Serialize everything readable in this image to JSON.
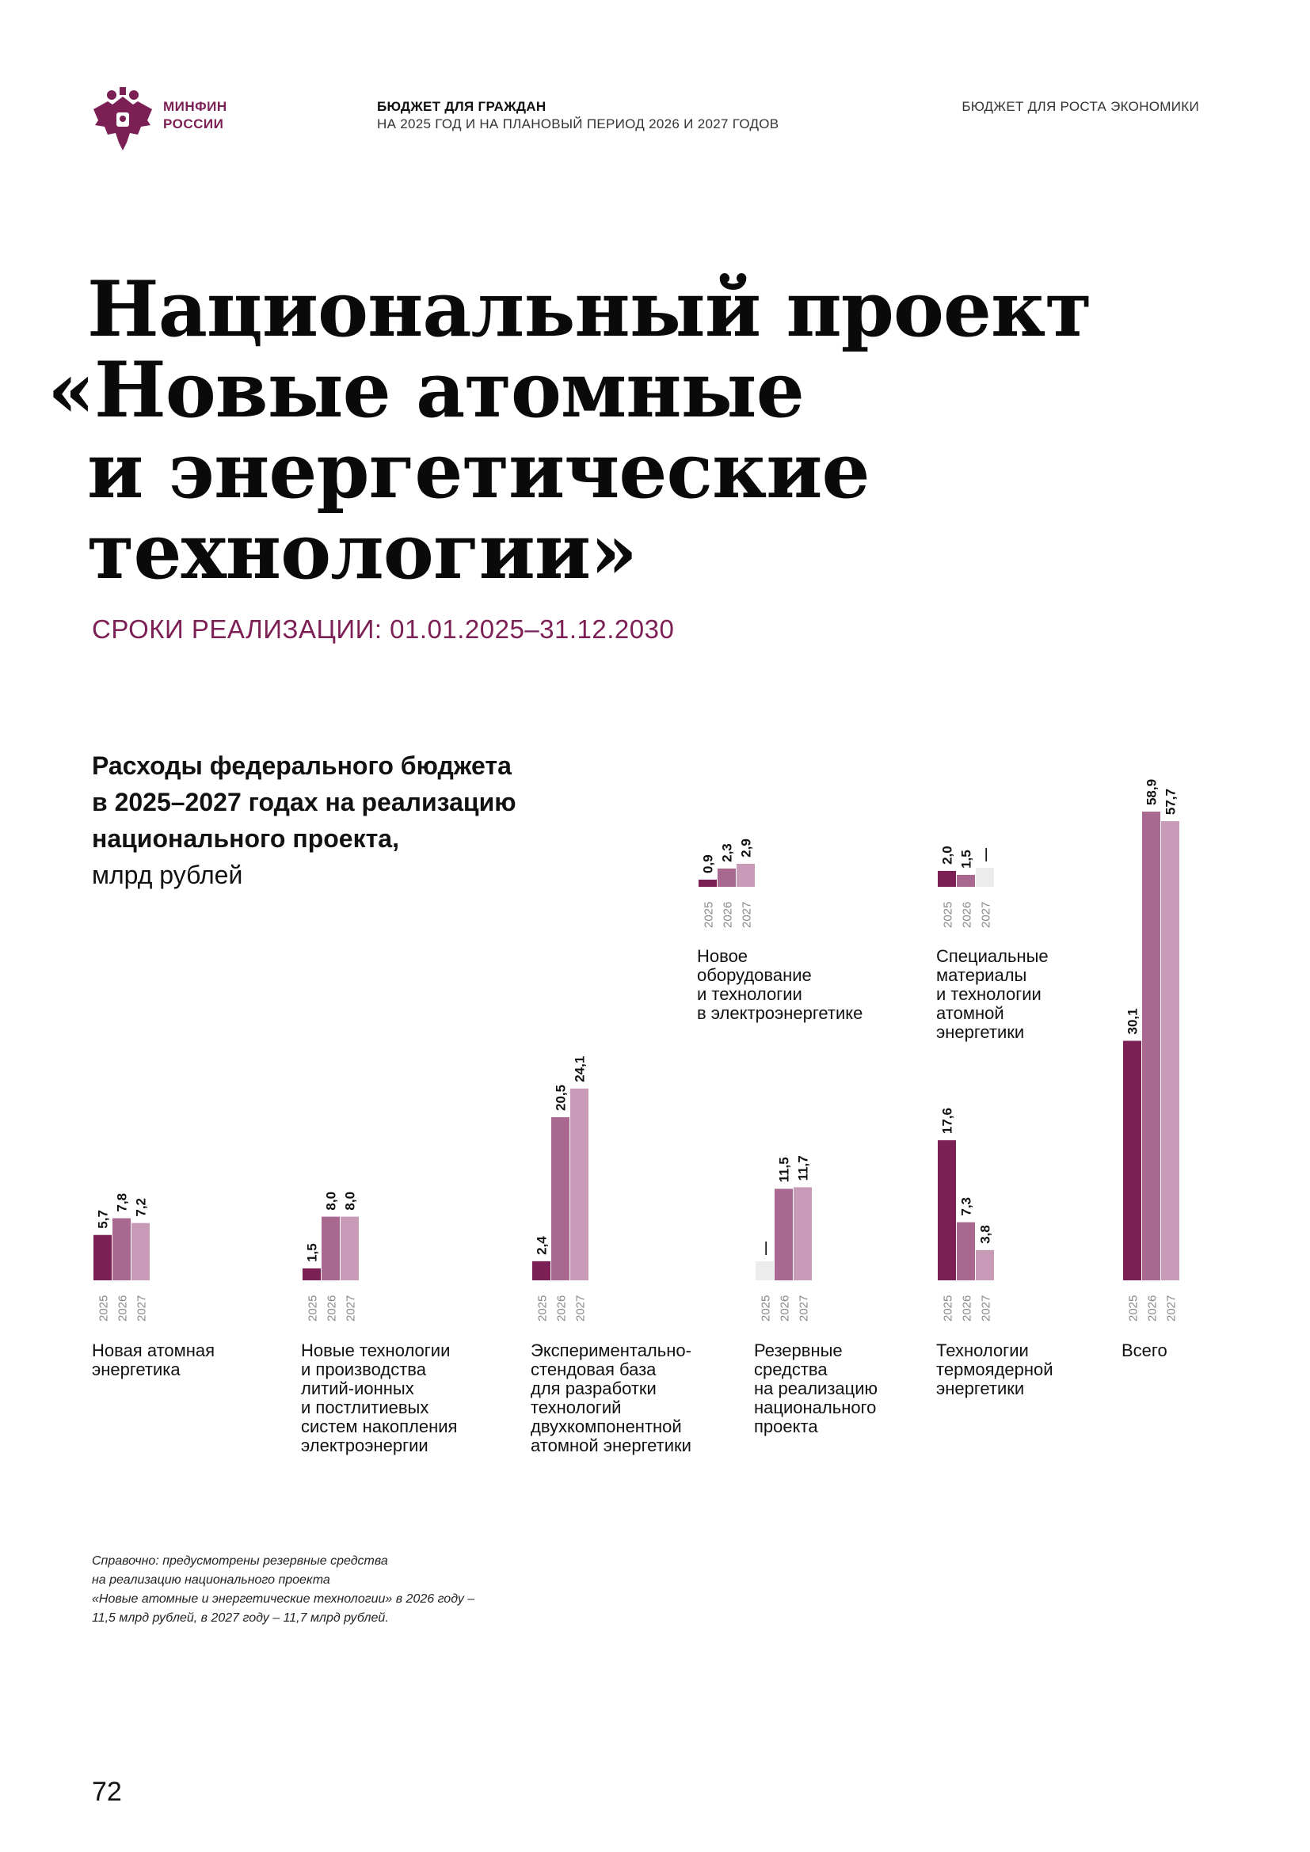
{
  "header": {
    "brand_line1": "МИНФИН",
    "brand_line2": "РОССИИ",
    "title_line1": "БЮДЖЕТ ДЛЯ ГРАЖДАН",
    "title_line2": "НА 2025 ГОД И НА ПЛАНОВЫЙ ПЕРИОД 2026 И 2027 ГОДОВ",
    "right": "БЮДЖЕТ ДЛЯ РОСТА ЭКОНОМИКИ"
  },
  "page_title": {
    "line1": "Национальный проект",
    "line2": "«Новые атомные",
    "line3": "и энергетические",
    "line4": "технологии»"
  },
  "period": "СРОКИ РЕАЛИЗАЦИИ: 01.01.2025–31.12.2030",
  "chart_title": {
    "line1": "Расходы федерального бюджета",
    "line2": "в 2025–2027 годах на реализацию",
    "line3": "национального проекта,",
    "unit": "млрд рублей"
  },
  "colors": {
    "brand": "#7b1f55",
    "y2025": "#7b1f55",
    "y2026": "#a8688f",
    "y2027": "#c89ab7",
    "dash_bg": "#ececec"
  },
  "chart_data": {
    "type": "bar",
    "series_names": [
      "2025",
      "2026",
      "2027"
    ],
    "groups": [
      {
        "label": [
          "Новая атомная",
          "энергетика"
        ],
        "values": [
          "5,7",
          "7,8",
          "7,2"
        ]
      },
      {
        "label": [
          "Новые технологии",
          "и производства",
          "литий-ионных",
          "и постлитиевых",
          "систем накопления",
          "электроэнергии"
        ],
        "values": [
          "1,5",
          "8,0",
          "8,0"
        ]
      },
      {
        "label": [
          "Экспериментально-",
          "стендовая база",
          "для разработки",
          "технологий",
          "двухкомпонентной",
          "атомной энергетики"
        ],
        "values": [
          "2,4",
          "20,5",
          "24,1"
        ]
      },
      {
        "label": [
          "Новое",
          "оборудование",
          "и технологии",
          "в электроэнергетике"
        ],
        "values": [
          "0,9",
          "2,3",
          "2,9"
        ]
      },
      {
        "label": [
          "Резервные",
          "средства",
          "на реализацию",
          "национального",
          "проекта"
        ],
        "values": [
          "—",
          "11,5",
          "11,7"
        ]
      },
      {
        "label": [
          "Специальные",
          "материалы",
          "и технологии",
          "атомной",
          "энергетики"
        ],
        "values": [
          "2,0",
          "1,5",
          "—"
        ]
      },
      {
        "label": [
          "Технологии",
          "термоядерной",
          "энергетики"
        ],
        "values": [
          "17,6",
          "7,3",
          "3,8"
        ]
      },
      {
        "label": [
          "Всего"
        ],
        "values": [
          "30,1",
          "58,9",
          "57,7"
        ]
      }
    ]
  },
  "note": {
    "line1": "Справочно: предусмотрены резервные средства",
    "line2": "на реализацию национального проекта",
    "line3": "«Новые атомные и энергетические технологии» в 2026 году –",
    "line4": "11,5 млрд рублей, в 2027 году – 11,7 млрд рублей."
  },
  "page_number": "72"
}
